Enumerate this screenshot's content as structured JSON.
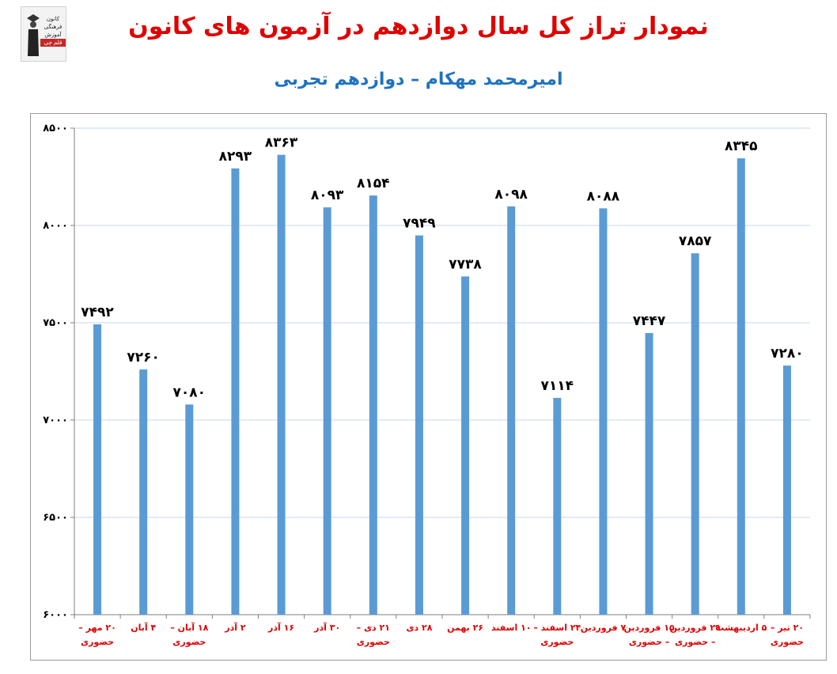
{
  "logo": {
    "lines": [
      "کانون",
      "فرهنگی",
      "آموزش"
    ],
    "tag": "قلم چی"
  },
  "header": {
    "title": "نمودار تراز کل سال دوازدهم در آزمون های کانون",
    "subtitle": "امیرمحمد مهکام – دوازدهم تجربی"
  },
  "colors": {
    "bar": "#5b9bd5",
    "title": "#e00000",
    "subtitle": "#1e73be",
    "grid": "#c5d9ee",
    "x_label": "#e00000"
  },
  "chart_data": {
    "type": "bar",
    "categories": [
      [
        "۲۰ مهر –",
        "حضوری"
      ],
      [
        "۴ آبان"
      ],
      [
        "۱۸ آبان –",
        "حضوری"
      ],
      [
        "۲ آذر"
      ],
      [
        "۱۶ آذر"
      ],
      [
        "۳۰ آذر"
      ],
      [
        "۲۱ دی –",
        "حضوری"
      ],
      [
        "۲۸ دی"
      ],
      [
        "۲۶ بهمن"
      ],
      [
        "۱۰ اسفند"
      ],
      [
        "۲۴ اسفند –",
        "حضوری"
      ],
      [
        "۷ فروردین"
      ],
      [
        "۱۵ فروردین",
        "– حضوری"
      ],
      [
        "۲۹ فروردین",
        "– حضوری"
      ],
      [
        "۵ اردیبهشت"
      ],
      [
        "۲۰ تیر –",
        "حضوری"
      ]
    ],
    "values": [
      7492,
      7260,
      7080,
      8293,
      8363,
      8093,
      8154,
      7949,
      7738,
      8098,
      7114,
      8088,
      7447,
      7857,
      8345,
      7280
    ],
    "value_labels": [
      "۷۴۹۲",
      "۷۲۶۰",
      "۷۰۸۰",
      "۸۲۹۳",
      "۸۳۶۳",
      "۸۰۹۳",
      "۸۱۵۴",
      "۷۹۴۹",
      "۷۷۳۸",
      "۸۰۹۸",
      "۷۱۱۴",
      "۸۰۸۸",
      "۷۴۴۷",
      "۷۸۵۷",
      "۸۳۴۵",
      "۷۲۸۰"
    ],
    "yticks": [
      6000,
      6500,
      7000,
      7500,
      8000,
      8500
    ],
    "ytick_labels": [
      "۶۰۰۰",
      "۶۵۰۰",
      "۷۰۰۰",
      "۷۵۰۰",
      "۸۰۰۰",
      "۸۵۰۰"
    ],
    "ylim": [
      6000,
      8500
    ],
    "grid": true,
    "title": "نمودار تراز کل سال دوازدهم در آزمون های کانون",
    "subtitle": "امیرمحمد مهکام – دوازدهم تجربی",
    "xlabel": "",
    "ylabel": ""
  }
}
